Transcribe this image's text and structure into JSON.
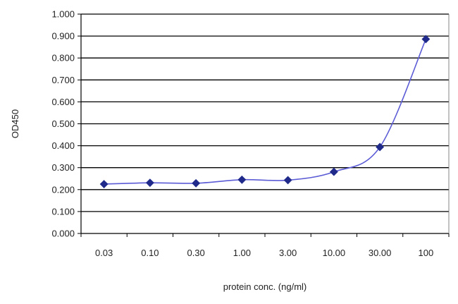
{
  "chart_data": {
    "type": "line",
    "xlabel": "protein conc. (ng/ml)",
    "ylabel": "OD450",
    "x": [
      "0.03",
      "0.10",
      "0.30",
      "1.00",
      "3.00",
      "10.00",
      "30.00",
      "100"
    ],
    "series": [
      {
        "values": [
          0.225,
          0.231,
          0.229,
          0.245,
          0.243,
          0.281,
          0.394,
          0.886
        ]
      }
    ],
    "y_ticks": [
      "0.000",
      "0.100",
      "0.200",
      "0.300",
      "0.400",
      "0.500",
      "0.600",
      "0.700",
      "0.800",
      "0.900",
      "1.000"
    ],
    "ylim": [
      0,
      1
    ],
    "grid": "horizontal",
    "legend": "none",
    "colors": {
      "line": "#5b5bd6",
      "marker": "#1f2a8a",
      "grid": "#000000"
    }
  }
}
